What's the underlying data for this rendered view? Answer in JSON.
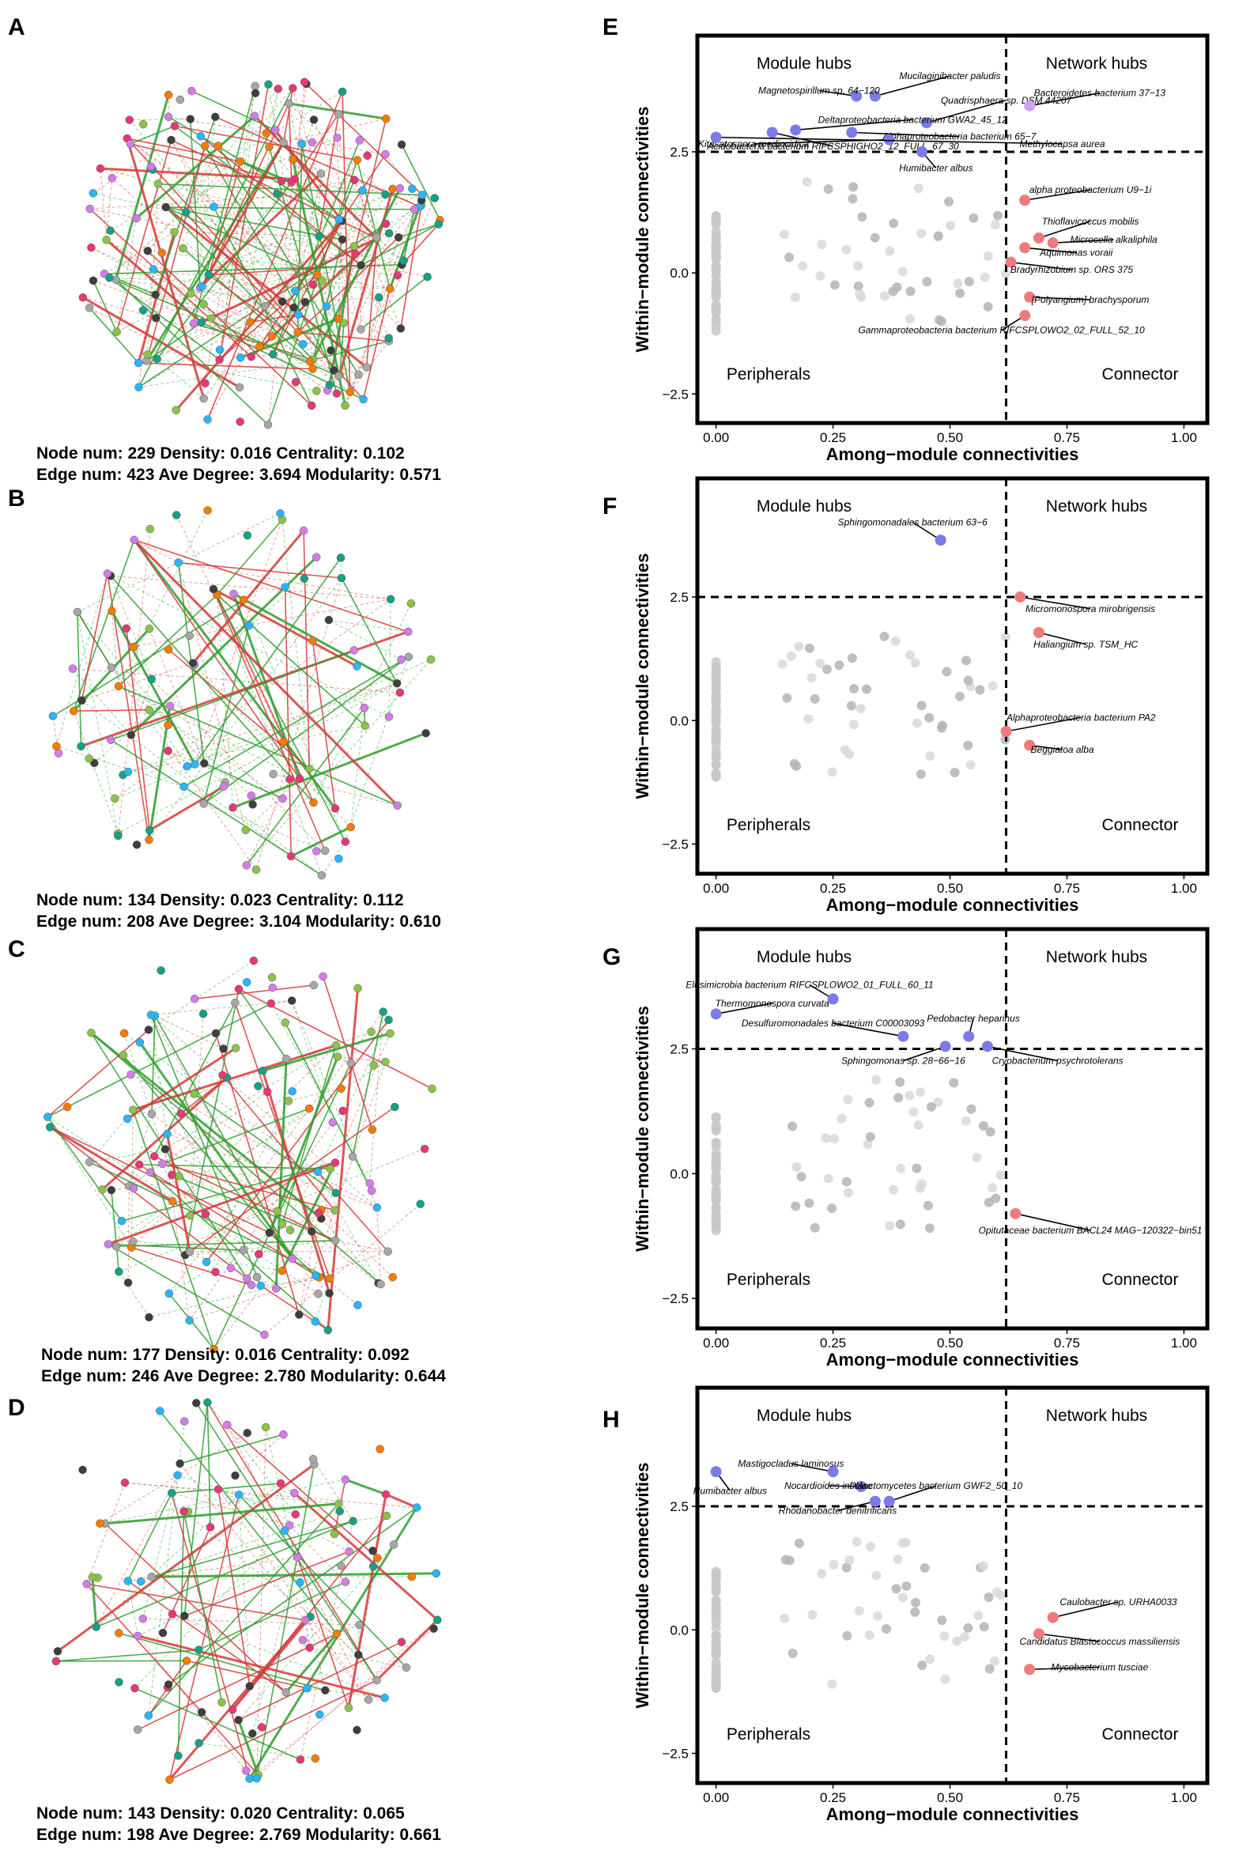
{
  "panel_letters": [
    "A",
    "B",
    "C",
    "D",
    "E",
    "F",
    "G",
    "H"
  ],
  "network_panels": [
    {
      "letter": "A",
      "stats_line1": "Node num: 229 Density: 0.016 Centrality: 0.102",
      "stats_line2": "Edge num: 423 Ave Degree: 3.694 Modularity: 0.571",
      "node_count": 229,
      "edge_count": 423,
      "density": 0.016,
      "centrality": 0.102,
      "avg_degree": 3.694,
      "modularity": 0.571
    },
    {
      "letter": "B",
      "stats_line1": "Node num: 134 Density: 0.023 Centrality: 0.112",
      "stats_line2": "Edge num: 208 Ave Degree: 3.104  Modularity: 0.610",
      "node_count": 134,
      "edge_count": 208,
      "density": 0.023,
      "centrality": 0.112,
      "avg_degree": 3.104,
      "modularity": 0.61
    },
    {
      "letter": "C",
      "stats_line1": "Node num: 177 Density: 0.016 Centrality: 0.092",
      "stats_line2": "Edge num: 246 Ave Degree: 2.780 Modularity: 0.644",
      "node_count": 177,
      "edge_count": 246,
      "density": 0.016,
      "centrality": 0.092,
      "avg_degree": 2.78,
      "modularity": 0.644
    },
    {
      "letter": "D",
      "stats_line1": "Node num: 143 Density: 0.020 Centrality: 0.065",
      "stats_line2": "Edge num: 198 Ave Degree: 2.769 Modularity: 0.661",
      "node_count": 143,
      "edge_count": 198,
      "density": 0.02,
      "centrality": 0.065,
      "avg_degree": 2.769,
      "modularity": 0.661
    }
  ],
  "colors": {
    "module_hub": "#7b7be8",
    "network_hub": "#c9a3f0",
    "connector": "#ef7a7a",
    "peripheral": "#c8c8c8",
    "node_palette": [
      "#8bc34a",
      "#29b6f6",
      "#d27de6",
      "#f57c00",
      "#e53974",
      "#3e3e3e",
      "#a6a6a6",
      "#16a085"
    ],
    "edge_positive": "#2e9e2e",
    "edge_negative": "#d63838"
  },
  "chart_data": [
    {
      "panel": "E",
      "type": "scatter",
      "xlabel": "Among−module connectivities",
      "ylabel": "Within−module connectivities",
      "xlim": [
        -0.04,
        1.05
      ],
      "ylim": [
        -3.1,
        4.9
      ],
      "xticks": [
        0,
        0.25,
        0.5,
        0.75,
        1
      ],
      "xtick_labels": [
        "0.00",
        "0.25",
        "0.50",
        "0.75",
        "1.00"
      ],
      "yticks": [
        -2.5,
        0,
        2.5
      ],
      "ytick_labels": [
        "−2.5",
        "0.0",
        "2.5"
      ],
      "thresholds": {
        "x": 0.62,
        "y": 2.5
      },
      "region_labels": {
        "top_left": "Module hubs",
        "top_right": "Network hubs",
        "bottom_left": "Peripherals",
        "bottom_right": "Connector"
      },
      "labeled_points": [
        {
          "x": 0.34,
          "y": 3.65,
          "role": "module_hub",
          "label": "Mucilaginibacter paludis",
          "lx": 0.5,
          "ly": 4.0
        },
        {
          "x": 0.3,
          "y": 3.65,
          "role": "module_hub",
          "label": "Magnetospirillum sp. 64−120",
          "lx": 0.22,
          "ly": 3.7
        },
        {
          "x": 0.45,
          "y": 3.1,
          "role": "module_hub",
          "label": "Quadrisphaera sp. DSM 44207",
          "lx": 0.62,
          "ly": 3.5
        },
        {
          "x": 0.12,
          "y": 2.9,
          "role": "module_hub",
          "label": "Acidobacteria bacterium RIFCSPHIGHO2_12_FULL_67_30",
          "lx": 0.25,
          "ly": 2.55,
          "spanx": 0.5
        },
        {
          "x": 0.17,
          "y": 2.95,
          "role": "module_hub",
          "label": "Deltaproteobacteria bacterium GWA2_45_12",
          "lx": 0.42,
          "ly": 3.1
        },
        {
          "x": 0.29,
          "y": 2.9,
          "role": "module_hub",
          "label": "Alphaproteobacteria bacterium 65−7",
          "lx": 0.52,
          "ly": 2.75
        },
        {
          "x": 0.37,
          "y": 2.75,
          "role": "module_hub",
          "label": "Kitasatospora mediocidica",
          "lx": 0.08,
          "ly": 2.6
        },
        {
          "x": 0.0,
          "y": 2.8,
          "role": "module_hub",
          "label": "Methylocapsa aurea",
          "lx": 0.74,
          "ly": 2.6
        },
        {
          "x": 0.44,
          "y": 2.5,
          "role": "module_hub",
          "label": "Humibacter albus",
          "lx": 0.47,
          "ly": 2.1
        },
        {
          "x": 0.67,
          "y": 3.45,
          "role": "network_hub",
          "label": "Bacteroidetes bacterium 37−13",
          "lx": 0.82,
          "ly": 3.65
        },
        {
          "x": 0.66,
          "y": 1.5,
          "role": "connector",
          "label": "alpha proteobacterium U9−1i",
          "lx": 0.8,
          "ly": 1.65
        },
        {
          "x": 0.69,
          "y": 0.72,
          "role": "connector",
          "label": "Thioflavicoccus mobilis",
          "lx": 0.8,
          "ly": 1.0
        },
        {
          "x": 0.72,
          "y": 0.62,
          "role": "connector",
          "label": "Microcella alkaliphila",
          "lx": 0.85,
          "ly": 0.62
        },
        {
          "x": 0.66,
          "y": 0.52,
          "role": "connector",
          "label": "Aquimonas voraii",
          "lx": 0.77,
          "ly": 0.35
        },
        {
          "x": 0.63,
          "y": 0.22,
          "role": "connector",
          "label": "Bradyrhizobium sp. ORS 375",
          "lx": 0.76,
          "ly": 0.0
        },
        {
          "x": 0.67,
          "y": -0.5,
          "role": "connector",
          "label": "[Polyangium] brachysporum",
          "lx": 0.8,
          "ly": -0.62
        },
        {
          "x": 0.66,
          "y": -0.88,
          "role": "connector",
          "label": "Gammaproteobacteria bacterium RIFCSPLOWO2_02_FULL_52_10",
          "lx": 0.61,
          "ly": -1.25
        }
      ]
    },
    {
      "panel": "F",
      "type": "scatter",
      "xlabel": "Among−module connectivities",
      "ylabel": "Within−module connectivities",
      "xlim": [
        -0.04,
        1.05
      ],
      "ylim": [
        -3.1,
        4.9
      ],
      "xticks": [
        0,
        0.25,
        0.5,
        0.75,
        1
      ],
      "xtick_labels": [
        "0.00",
        "0.25",
        "0.50",
        "0.75",
        "1.00"
      ],
      "yticks": [
        -2.5,
        0,
        2.5
      ],
      "ytick_labels": [
        "−2.5",
        "0.0",
        "2.5"
      ],
      "thresholds": {
        "x": 0.62,
        "y": 2.5
      },
      "region_labels": {
        "top_left": "Module hubs",
        "top_right": "Network hubs",
        "bottom_left": "Peripherals",
        "bottom_right": "Connector"
      },
      "labeled_points": [
        {
          "x": 0.48,
          "y": 3.65,
          "role": "module_hub",
          "label": "Sphingomonadales bacterium 63−6",
          "lx": 0.42,
          "ly": 3.95
        },
        {
          "x": 0.65,
          "y": 2.5,
          "role": "connector",
          "label": "Micromonospora mirobrigensis",
          "lx": 0.8,
          "ly": 2.2
        },
        {
          "x": 0.69,
          "y": 1.78,
          "role": "connector",
          "label": "Haliangium sp. TSM_HC",
          "lx": 0.79,
          "ly": 1.48
        },
        {
          "x": 0.62,
          "y": -0.22,
          "role": "connector",
          "label": "Alphaproteobacteria bacterium PA2",
          "lx": 0.78,
          "ly": 0.0
        },
        {
          "x": 0.67,
          "y": -0.5,
          "role": "connector",
          "label": "Beggiatoa alba",
          "lx": 0.74,
          "ly": -0.65
        }
      ]
    },
    {
      "panel": "G",
      "type": "scatter",
      "xlabel": "Among−module connectivities",
      "ylabel": "Within−module connectivities",
      "xlim": [
        -0.04,
        1.05
      ],
      "ylim": [
        -3.1,
        4.9
      ],
      "xticks": [
        0,
        0.25,
        0.5,
        0.75,
        1
      ],
      "xtick_labels": [
        "0.00",
        "0.25",
        "0.50",
        "0.75",
        "1.00"
      ],
      "yticks": [
        -2.5,
        0,
        2.5
      ],
      "ytick_labels": [
        "−2.5",
        "0.0",
        "2.5"
      ],
      "thresholds": {
        "x": 0.62,
        "y": 2.5
      },
      "region_labels": {
        "top_left": "Module hubs",
        "top_right": "Network hubs",
        "bottom_left": "Peripherals",
        "bottom_right": "Connector"
      },
      "labeled_points": [
        {
          "x": 0.25,
          "y": 3.5,
          "role": "module_hub",
          "label": "Elusimicrobia bacterium RIFCSPLOWO2_01_FULL_60_11",
          "lx": 0.2,
          "ly": 3.72
        },
        {
          "x": 0.0,
          "y": 3.2,
          "role": "module_hub",
          "label": "Thermomonospora curvata",
          "lx": 0.12,
          "ly": 3.35
        },
        {
          "x": 0.4,
          "y": 2.75,
          "role": "module_hub",
          "label": "Desulfuromonadales bacterium C00003093",
          "lx": 0.25,
          "ly": 2.95
        },
        {
          "x": 0.54,
          "y": 2.75,
          "role": "module_hub",
          "label": "Pedobacter heparinus",
          "lx": 0.55,
          "ly": 3.05
        },
        {
          "x": 0.49,
          "y": 2.55,
          "role": "module_hub",
          "label": "Sphingomonas sp. 28−66−16",
          "lx": 0.4,
          "ly": 2.2
        },
        {
          "x": 0.58,
          "y": 2.55,
          "role": "module_hub",
          "label": "Cryobacterium psychrotolerans",
          "lx": 0.73,
          "ly": 2.2
        },
        {
          "x": 0.64,
          "y": -0.8,
          "role": "connector",
          "label": "Opitutaceae bacterium BACL24 MAG−120322−bin51",
          "lx": 0.8,
          "ly": -1.2
        }
      ]
    },
    {
      "panel": "H",
      "type": "scatter",
      "xlabel": "Among−module connectivities",
      "ylabel": "Within−module connectivities",
      "xlim": [
        -0.04,
        1.05
      ],
      "ylim": [
        -3.1,
        4.9
      ],
      "xticks": [
        0,
        0.25,
        0.5,
        0.75,
        1
      ],
      "xtick_labels": [
        "0.00",
        "0.25",
        "0.50",
        "0.75",
        "1.00"
      ],
      "yticks": [
        -2.5,
        0,
        2.5
      ],
      "ytick_labels": [
        "−2.5",
        "0.0",
        "2.5"
      ],
      "thresholds": {
        "x": 0.62,
        "y": 2.5
      },
      "region_labels": {
        "top_left": "Module hubs",
        "top_right": "Network hubs",
        "bottom_left": "Peripherals",
        "bottom_right": "Connector"
      },
      "labeled_points": [
        {
          "x": 0.0,
          "y": 3.2,
          "role": "module_hub",
          "label": "Humibacter albus",
          "lx": 0.03,
          "ly": 2.75
        },
        {
          "x": 0.25,
          "y": 3.2,
          "role": "module_hub",
          "label": "Mastigocladus laminosus",
          "lx": 0.16,
          "ly": 3.3
        },
        {
          "x": 0.31,
          "y": 2.9,
          "role": "module_hub",
          "label": "Nocardioides insulae",
          "lx": 0.24,
          "ly": 2.85
        },
        {
          "x": 0.37,
          "y": 2.6,
          "role": "module_hub",
          "label": "Planctomycetes bacterium GWF2_50_10",
          "lx": 0.47,
          "ly": 2.85
        },
        {
          "x": 0.34,
          "y": 2.6,
          "role": "module_hub",
          "label": "Rhodanobacter denitrificans",
          "lx": 0.26,
          "ly": 2.35
        },
        {
          "x": 0.72,
          "y": 0.25,
          "role": "connector",
          "label": "Caulobacter sp. URHA0033",
          "lx": 0.86,
          "ly": 0.5
        },
        {
          "x": 0.69,
          "y": -0.08,
          "role": "connector",
          "label": "Candidatus Blastococcus massiliensis",
          "lx": 0.82,
          "ly": -0.3
        },
        {
          "x": 0.67,
          "y": -0.8,
          "role": "connector",
          "label": "Mycobacterium tusciae",
          "lx": 0.82,
          "ly": -0.82
        }
      ]
    }
  ]
}
